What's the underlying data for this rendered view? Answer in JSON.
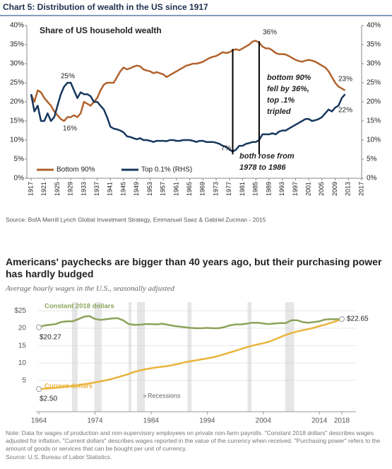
{
  "chart_data": [
    {
      "type": "line",
      "title": "Chart 5: Distribution of wealth in the US since 1917",
      "subtitle": "Share of US household wealth",
      "x": [
        1917,
        1918,
        1919,
        1920,
        1921,
        1922,
        1923,
        1924,
        1925,
        1926,
        1927,
        1928,
        1929,
        1930,
        1931,
        1932,
        1933,
        1934,
        1935,
        1936,
        1937,
        1938,
        1939,
        1940,
        1941,
        1942,
        1943,
        1944,
        1945,
        1946,
        1947,
        1948,
        1949,
        1950,
        1951,
        1952,
        1953,
        1954,
        1955,
        1956,
        1957,
        1958,
        1959,
        1960,
        1961,
        1962,
        1963,
        1964,
        1965,
        1966,
        1967,
        1968,
        1969,
        1970,
        1971,
        1972,
        1973,
        1974,
        1975,
        1976,
        1977,
        1978,
        1979,
        1980,
        1981,
        1982,
        1983,
        1984,
        1985,
        1986,
        1987,
        1988,
        1989,
        1990,
        1991,
        1992,
        1993,
        1994,
        1995,
        1996,
        1997,
        1998,
        1999,
        2000,
        2001,
        2002,
        2003,
        2004,
        2005,
        2006,
        2007,
        2008,
        2009,
        2010,
        2011,
        2012
      ],
      "series": [
        {
          "name": "Bottom 90%",
          "color": "#b0622d",
          "values": [
            22,
            20,
            23,
            22.5,
            21,
            20,
            19,
            17.5,
            16.5,
            15.5,
            15,
            16,
            16,
            16.5,
            16,
            17,
            20,
            19.5,
            19,
            20,
            21,
            23,
            24.5,
            25,
            25,
            25,
            26.5,
            28,
            29,
            28.5,
            28.8,
            29.2,
            29.5,
            29.3,
            28.5,
            28.2,
            28,
            27.5,
            27.8,
            27.5,
            27.2,
            26.5,
            27,
            27.5,
            28,
            28.5,
            29,
            29.5,
            29.7,
            30,
            30,
            30.2,
            30.5,
            31,
            31.5,
            31.8,
            32,
            32.5,
            33,
            32.8,
            33,
            33.5,
            33.8,
            33.5,
            34,
            34.5,
            35,
            35.8,
            36,
            35.5,
            34.5,
            34,
            34,
            33.5,
            32.8,
            32.5,
            32.5,
            32.4,
            32,
            31.5,
            31,
            30.7,
            30.5,
            30.8,
            31,
            30.8,
            30.5,
            30,
            29.5,
            29,
            28,
            26.5,
            25,
            24,
            23.5,
            23
          ]
        },
        {
          "name": "Top 0.1% (RHS)",
          "color": "#17375e",
          "axis": "y2",
          "values": [
            22,
            17.5,
            19,
            15,
            15,
            17,
            15,
            16,
            19,
            22,
            24,
            25,
            25,
            23,
            21,
            22.5,
            22,
            22,
            21.5,
            20,
            20,
            19,
            18,
            16,
            13.5,
            13,
            12.8,
            12.5,
            12,
            11,
            10.8,
            10.5,
            10.2,
            10.5,
            10,
            10,
            9.8,
            9.5,
            9.8,
            9.8,
            9.8,
            9.7,
            10,
            10,
            9.8,
            9.8,
            10,
            10,
            10,
            9.8,
            9.5,
            9.8,
            9.8,
            9.5,
            9.5,
            9.5,
            9.3,
            9,
            8.5,
            8.2,
            7.5,
            7,
            7.5,
            8.5,
            8.5,
            9,
            9.2,
            9.5,
            9.5,
            10,
            11.5,
            11.5,
            11.5,
            11.8,
            11.5,
            12.2,
            12.5,
            12.5,
            13,
            13.5,
            14,
            14.5,
            15,
            15.5,
            15.5,
            15,
            15.2,
            15.5,
            16,
            17,
            18,
            17.5,
            18.5,
            19,
            21,
            22
          ]
        }
      ],
      "xlim": [
        1917,
        2017
      ],
      "xticks": [
        1917,
        1921,
        1925,
        1929,
        1933,
        1937,
        1941,
        1945,
        1949,
        1953,
        1957,
        1961,
        1965,
        1969,
        1973,
        1977,
        1981,
        1985,
        1989,
        1993,
        1997,
        2001,
        2005,
        2009,
        2013,
        2017
      ],
      "ylim": [
        0,
        40
      ],
      "yticks": [
        {
          "value": 0,
          "label": "0%"
        },
        {
          "value": 5,
          "label": "5%"
        },
        {
          "value": 10,
          "label": "10%"
        },
        {
          "value": 15,
          "label": "15%"
        },
        {
          "value": 20,
          "label": "20%"
        },
        {
          "value": 25,
          "label": "25%"
        },
        {
          "value": 30,
          "label": "30%"
        },
        {
          "value": 35,
          "label": "35%"
        },
        {
          "value": 40,
          "label": "40%"
        }
      ],
      "y2lim": [
        0,
        40
      ],
      "y2ticks": [
        {
          "value": 0,
          "label": "0%"
        },
        {
          "value": 5,
          "label": "5%"
        },
        {
          "value": 10,
          "label": "10%"
        },
        {
          "value": 15,
          "label": "15%"
        },
        {
          "value": 20,
          "label": "20%"
        },
        {
          "value": 25,
          "label": "25%"
        },
        {
          "value": 30,
          "label": "30%"
        },
        {
          "value": 35,
          "label": "35%"
        },
        {
          "value": 40,
          "label": "40%"
        }
      ],
      "vlines": [
        1978,
        1986
      ],
      "annotations": [
        "25%",
        "16%",
        "36%",
        "23%",
        "22%",
        "7%"
      ],
      "notes": [
        [
          "bottom 90%",
          "fell by 36%,",
          "top .1%",
          "tripled"
        ],
        [
          "both rose from",
          "1978 to 1986"
        ]
      ],
      "legend": "bottom-left",
      "source": "Source: BofA Merrill Lynch Global Investment Strategy, Emmanuel Saez & Gabriel Zucman - 2015"
    },
    {
      "type": "line",
      "title": "Americans' paychecks are bigger than 40 years ago, but their purchasing power has hardly budged",
      "subtitle": "Average hourly wages in the U.S., seasonally adjusted",
      "x": [
        1964,
        1965,
        1966,
        1967,
        1968,
        1969,
        1970,
        1971,
        1972,
        1973,
        1974,
        1975,
        1976,
        1977,
        1978,
        1979,
        1980,
        1981,
        1982,
        1983,
        1984,
        1985,
        1986,
        1987,
        1988,
        1989,
        1990,
        1991,
        1992,
        1993,
        1994,
        1995,
        1996,
        1997,
        1998,
        1999,
        2000,
        2001,
        2002,
        2003,
        2004,
        2005,
        2006,
        2007,
        2008,
        2009,
        2010,
        2011,
        2012,
        2013,
        2014,
        2015,
        2016,
        2017,
        2018
      ],
      "series": [
        {
          "name": "Constant 2018 dollars",
          "color": "#8da35b",
          "values": [
            20.27,
            20.8,
            21.0,
            21.2,
            21.8,
            22.0,
            22.0,
            22.6,
            23.3,
            23.5,
            22.7,
            22.4,
            22.6,
            22.8,
            22.9,
            22.3,
            21.2,
            21.0,
            21.0,
            21.2,
            21.2,
            21.1,
            21.3,
            21.0,
            20.7,
            20.5,
            20.3,
            20.1,
            20.0,
            20.0,
            20.1,
            20.0,
            20.0,
            20.3,
            20.8,
            21.1,
            21.1,
            21.3,
            21.6,
            21.6,
            21.4,
            21.2,
            21.4,
            21.5,
            21.5,
            22.3,
            22.3,
            21.8,
            21.6,
            21.8,
            22.0,
            22.5,
            22.6,
            22.6,
            22.65
          ],
          "value_labels": [
            "$20.27",
            null,
            null,
            null,
            null,
            null,
            null,
            null,
            null,
            null,
            null,
            null,
            null,
            null,
            null,
            null,
            null,
            null,
            null,
            null,
            null,
            null,
            null,
            null,
            null,
            null,
            null,
            null,
            null,
            null,
            null,
            null,
            null,
            null,
            null,
            null,
            null,
            null,
            null,
            null,
            null,
            null,
            null,
            null,
            null,
            null,
            null,
            null,
            null,
            null,
            null,
            null,
            null,
            null,
            "$22.65"
          ]
        },
        {
          "name": "Current dollars",
          "color": "#e9b43b",
          "values": [
            2.5,
            2.63,
            2.73,
            2.85,
            3.02,
            3.22,
            3.4,
            3.63,
            3.9,
            4.14,
            4.43,
            4.73,
            5.06,
            5.44,
            5.88,
            6.34,
            6.85,
            7.44,
            7.87,
            8.2,
            8.49,
            8.74,
            8.93,
            9.14,
            9.44,
            9.8,
            10.2,
            10.52,
            10.77,
            11.05,
            11.34,
            11.65,
            12.04,
            12.51,
            13.01,
            13.49,
            14.02,
            14.54,
            14.97,
            15.37,
            15.69,
            16.12,
            16.75,
            17.42,
            18.07,
            18.61,
            19.05,
            19.44,
            19.74,
            20.13,
            20.61,
            21.04,
            21.55,
            22.06,
            22.65
          ],
          "value_labels": [
            "$2.50",
            null,
            null,
            null,
            null,
            null,
            null,
            null,
            null,
            null,
            null,
            null,
            null,
            null,
            null,
            null,
            null,
            null,
            null,
            null,
            null,
            null,
            null,
            null,
            null,
            null,
            null,
            null,
            null,
            null,
            null,
            null,
            null,
            null,
            null,
            null,
            null,
            null,
            null,
            null,
            null,
            null,
            null,
            null,
            null,
            null,
            null,
            null,
            null,
            null,
            null,
            null,
            null,
            null,
            null
          ]
        }
      ],
      "xlim": [
        1964,
        2018
      ],
      "xticks": [
        1964,
        1974,
        1984,
        1994,
        2004,
        2014,
        2018
      ],
      "ylim": [
        -4,
        25.5
      ],
      "yticks": [
        5,
        10,
        15,
        20,
        {
          "value": 25,
          "label": "$25"
        }
      ],
      "grid": true,
      "recessions": [
        [
          1969.9,
          1970.9
        ],
        [
          1973.9,
          1975.2
        ],
        [
          1980.0,
          1980.5
        ],
        [
          1981.5,
          1982.9
        ],
        [
          1990.5,
          1991.2
        ],
        [
          2001.2,
          2001.9
        ],
        [
          2007.9,
          2009.5
        ]
      ],
      "recession_label": "Recessions",
      "legend": "inline",
      "note": "Note: Data for wages of production and non-supervisory employees on private non-farm payrolls. \"Constant 2018 dollars\" describes wages adjusted for inflation. \"Current dollars\" describes wages reported in the value of the currency when received. \"Purchasing power\" refers to the amount of goods or services that can be bought per unit of currency.",
      "source": "Source: U.S. Bureau of Labor Statistics."
    }
  ]
}
